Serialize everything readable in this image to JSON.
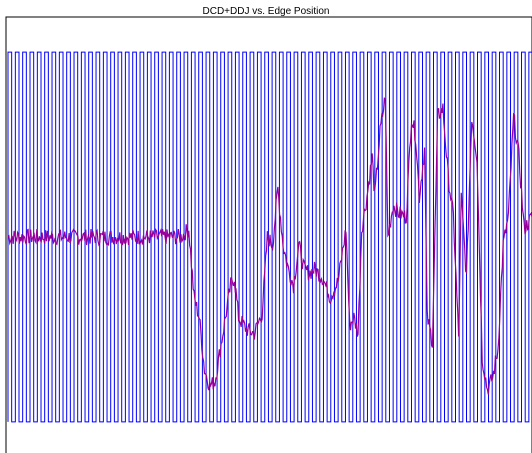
{
  "chart_data": {
    "type": "line",
    "title": "DCD+DDJ vs. Edge Position",
    "xlabel": "",
    "ylabel": "",
    "grid": false,
    "legend": "none",
    "x_range": [
      0,
      1
    ],
    "y_range": [
      0,
      1
    ],
    "series": [
      {
        "role": "bit-pattern",
        "color": "#0000ff",
        "levels": [
          0.04,
          0.96
        ],
        "edges": [
          0.0,
          0.007,
          0.014,
          0.021,
          0.028,
          0.035,
          0.042,
          0.049,
          0.056,
          0.063,
          0.07,
          0.077,
          0.084,
          0.091,
          0.098,
          0.105,
          0.112,
          0.119,
          0.126,
          0.133,
          0.14,
          0.147,
          0.154,
          0.161,
          0.168,
          0.175,
          0.182,
          0.189,
          0.196,
          0.203,
          0.21,
          0.217,
          0.224,
          0.231,
          0.238,
          0.245,
          0.252,
          0.259,
          0.266,
          0.273,
          0.28,
          0.287,
          0.294,
          0.301,
          0.308,
          0.315,
          0.322,
          0.329,
          0.336,
          0.343,
          0.35,
          0.357,
          0.364,
          0.371,
          0.378,
          0.385,
          0.392,
          0.399,
          0.406,
          0.413,
          0.42,
          0.427,
          0.434,
          0.441,
          0.448,
          0.455,
          0.462,
          0.469,
          0.476,
          0.483,
          0.49,
          0.497,
          0.504,
          0.511,
          0.518,
          0.525,
          0.532,
          0.539,
          0.546,
          0.553,
          0.56,
          0.567,
          0.574,
          0.581,
          0.588,
          0.595,
          0.602,
          0.609,
          0.616,
          0.623,
          0.63,
          0.637,
          0.644,
          0.651,
          0.658,
          0.665,
          0.672,
          0.679,
          0.686,
          0.693,
          0.7,
          0.707,
          0.714,
          0.721,
          0.728,
          0.735,
          0.742,
          0.749,
          0.756,
          0.763,
          0.77,
          0.777,
          0.784,
          0.791,
          0.798,
          0.805,
          0.812,
          0.819,
          0.826,
          0.833,
          0.84,
          0.847,
          0.854,
          0.861,
          0.868,
          0.875,
          0.882,
          0.889,
          0.896,
          0.903,
          0.91,
          0.917,
          0.924,
          0.931,
          0.938,
          0.945,
          0.952,
          0.959,
          0.966,
          0.973,
          0.98,
          0.987,
          0.994
        ]
      },
      {
        "role": "jitter-trace",
        "color": "#990099",
        "points": [
          [
            0.0,
            0.5
          ],
          [
            0.33,
            0.5
          ],
          [
            0.345,
            0.52
          ],
          [
            0.355,
            0.35
          ],
          [
            0.365,
            0.3
          ],
          [
            0.375,
            0.17
          ],
          [
            0.385,
            0.13
          ],
          [
            0.395,
            0.14
          ],
          [
            0.405,
            0.22
          ],
          [
            0.415,
            0.3
          ],
          [
            0.425,
            0.38
          ],
          [
            0.432,
            0.4
          ],
          [
            0.44,
            0.3
          ],
          [
            0.455,
            0.27
          ],
          [
            0.47,
            0.26
          ],
          [
            0.485,
            0.31
          ],
          [
            0.495,
            0.5
          ],
          [
            0.505,
            0.48
          ],
          [
            0.515,
            0.62
          ],
          [
            0.525,
            0.48
          ],
          [
            0.535,
            0.42
          ],
          [
            0.545,
            0.38
          ],
          [
            0.555,
            0.48
          ],
          [
            0.565,
            0.42
          ],
          [
            0.575,
            0.41
          ],
          [
            0.585,
            0.42
          ],
          [
            0.6,
            0.4
          ],
          [
            0.615,
            0.35
          ],
          [
            0.63,
            0.39
          ],
          [
            0.645,
            0.52
          ],
          [
            0.652,
            0.28
          ],
          [
            0.66,
            0.3
          ],
          [
            0.668,
            0.26
          ],
          [
            0.675,
            0.52
          ],
          [
            0.685,
            0.6
          ],
          [
            0.695,
            0.7
          ],
          [
            0.7,
            0.6
          ],
          [
            0.71,
            0.76
          ],
          [
            0.72,
            0.85
          ],
          [
            0.725,
            0.5
          ],
          [
            0.735,
            0.58
          ],
          [
            0.745,
            0.56
          ],
          [
            0.76,
            0.55
          ],
          [
            0.77,
            0.8
          ],
          [
            0.778,
            0.75
          ],
          [
            0.785,
            0.6
          ],
          [
            0.795,
            0.72
          ],
          [
            0.8,
            0.3
          ],
          [
            0.81,
            0.24
          ],
          [
            0.82,
            0.8
          ],
          [
            0.83,
            0.82
          ],
          [
            0.84,
            0.65
          ],
          [
            0.85,
            0.55
          ],
          [
            0.86,
            0.25
          ],
          [
            0.865,
            0.6
          ],
          [
            0.875,
            0.4
          ],
          [
            0.885,
            0.8
          ],
          [
            0.895,
            0.7
          ],
          [
            0.905,
            0.2
          ],
          [
            0.915,
            0.12
          ],
          [
            0.925,
            0.15
          ],
          [
            0.935,
            0.22
          ],
          [
            0.945,
            0.48
          ],
          [
            0.955,
            0.55
          ],
          [
            0.965,
            0.8
          ],
          [
            0.975,
            0.7
          ],
          [
            0.985,
            0.52
          ],
          [
            1.0,
            0.55
          ]
        ]
      }
    ]
  }
}
